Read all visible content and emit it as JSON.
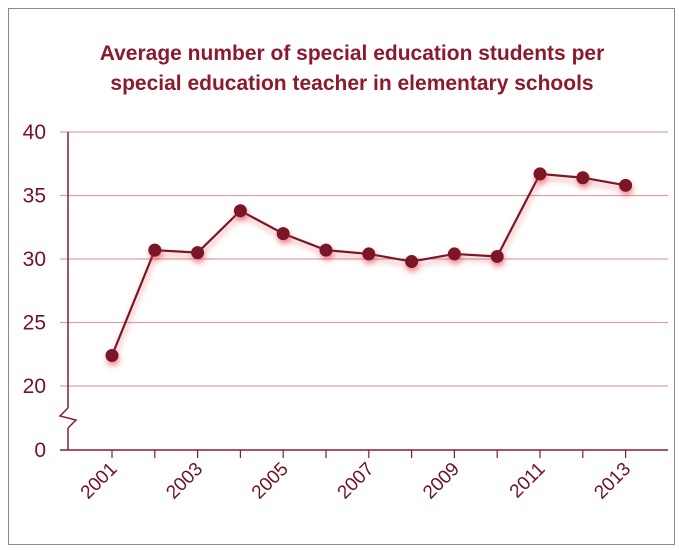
{
  "chart_data": {
    "type": "line",
    "title_lines": [
      "Average number of special education students per",
      "special education teacher in elementary schools"
    ],
    "xlabel": "",
    "ylabel": "",
    "x": [
      2001,
      2002,
      2003,
      2004,
      2005,
      2006,
      2007,
      2008,
      2009,
      2010,
      2011,
      2012,
      2013
    ],
    "series": [
      {
        "values": [
          22.4,
          30.7,
          30.5,
          33.8,
          32.0,
          30.7,
          30.4,
          29.8,
          30.4,
          30.2,
          36.7,
          36.4,
          35.8
        ]
      }
    ],
    "x_tick_labels": [
      "2001",
      "2003",
      "2005",
      "2007",
      "2009",
      "2011",
      "2013"
    ],
    "y_ticks": [
      0,
      20,
      25,
      30,
      35,
      40
    ],
    "ylim": [
      20,
      40
    ],
    "axis_break": "between 0 and 20",
    "grid": true,
    "colors": {
      "line": "#7a1428",
      "marker": "#7a1428",
      "grid": "#d9a3a9",
      "axis": "#8b1a2e",
      "text": "#6e1425"
    }
  }
}
